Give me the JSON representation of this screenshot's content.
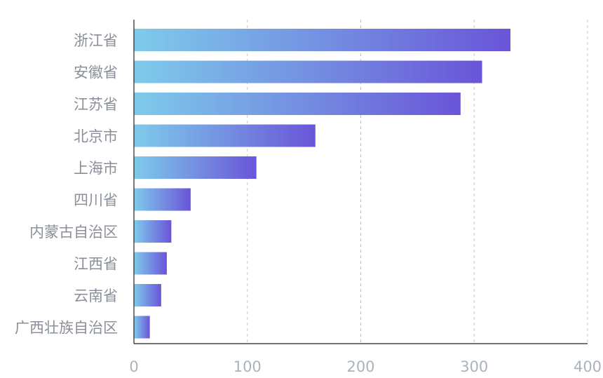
{
  "chart_data": {
    "type": "bar",
    "orientation": "horizontal",
    "categories": [
      "浙江省",
      "安徽省",
      "江苏省",
      "北京市",
      "上海市",
      "四川省",
      "内蒙古自治区",
      "江西省",
      "云南省",
      "广西壮族自治区"
    ],
    "values": [
      332,
      307,
      288,
      160,
      108,
      50,
      33,
      29,
      24,
      14
    ],
    "xlim": [
      0,
      400
    ],
    "x_ticks": [
      "0",
      "100",
      "200",
      "300",
      "400"
    ],
    "grid": "vertical dashed",
    "colors": {
      "bar_gradient_start": "#7ecbeb",
      "bar_gradient_end": "#6a55d8",
      "category_label": "#8a8f99",
      "tick_label": "#a9b2bf",
      "grid": "#c8c8c8",
      "axis": "#222222"
    }
  }
}
